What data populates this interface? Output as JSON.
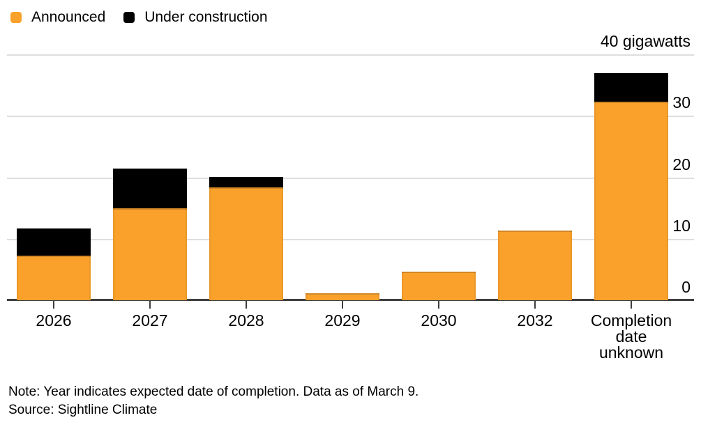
{
  "legend": [
    {
      "label": "Announced",
      "color": "#F9A12B"
    },
    {
      "label": "Under construction",
      "color": "#000000"
    }
  ],
  "chart_data": {
    "type": "bar",
    "stacked": true,
    "categories": [
      "2026",
      "2027",
      "2028",
      "2029",
      "2030",
      "2032",
      "Completion date unknown"
    ],
    "series": [
      {
        "name": "Announced",
        "color": "#F9A12B",
        "values": [
          7.3,
          15.0,
          18.4,
          1.1,
          4.7,
          11.3,
          32.3
        ]
      },
      {
        "name": "Under construction",
        "color": "#000000",
        "values": [
          4.4,
          6.4,
          1.7,
          0,
          0,
          0,
          4.6
        ]
      }
    ],
    "title": "",
    "xlabel": "",
    "ylabel": "gigawatts",
    "ylim": [
      0,
      40
    ],
    "yticks": [
      0,
      10,
      20,
      30,
      40
    ],
    "ytick_labels": [
      "0",
      "10",
      "20",
      "30",
      "40 gigawatts"
    ],
    "grid": true,
    "legend_position": "top-left",
    "gridline_color": "#DEDEDE",
    "axis_color": "#3E3E3E"
  },
  "footer": {
    "note": "Note: Year indicates expected date of completion. Data as of March 9.",
    "source": "Source: Sightline Climate"
  }
}
